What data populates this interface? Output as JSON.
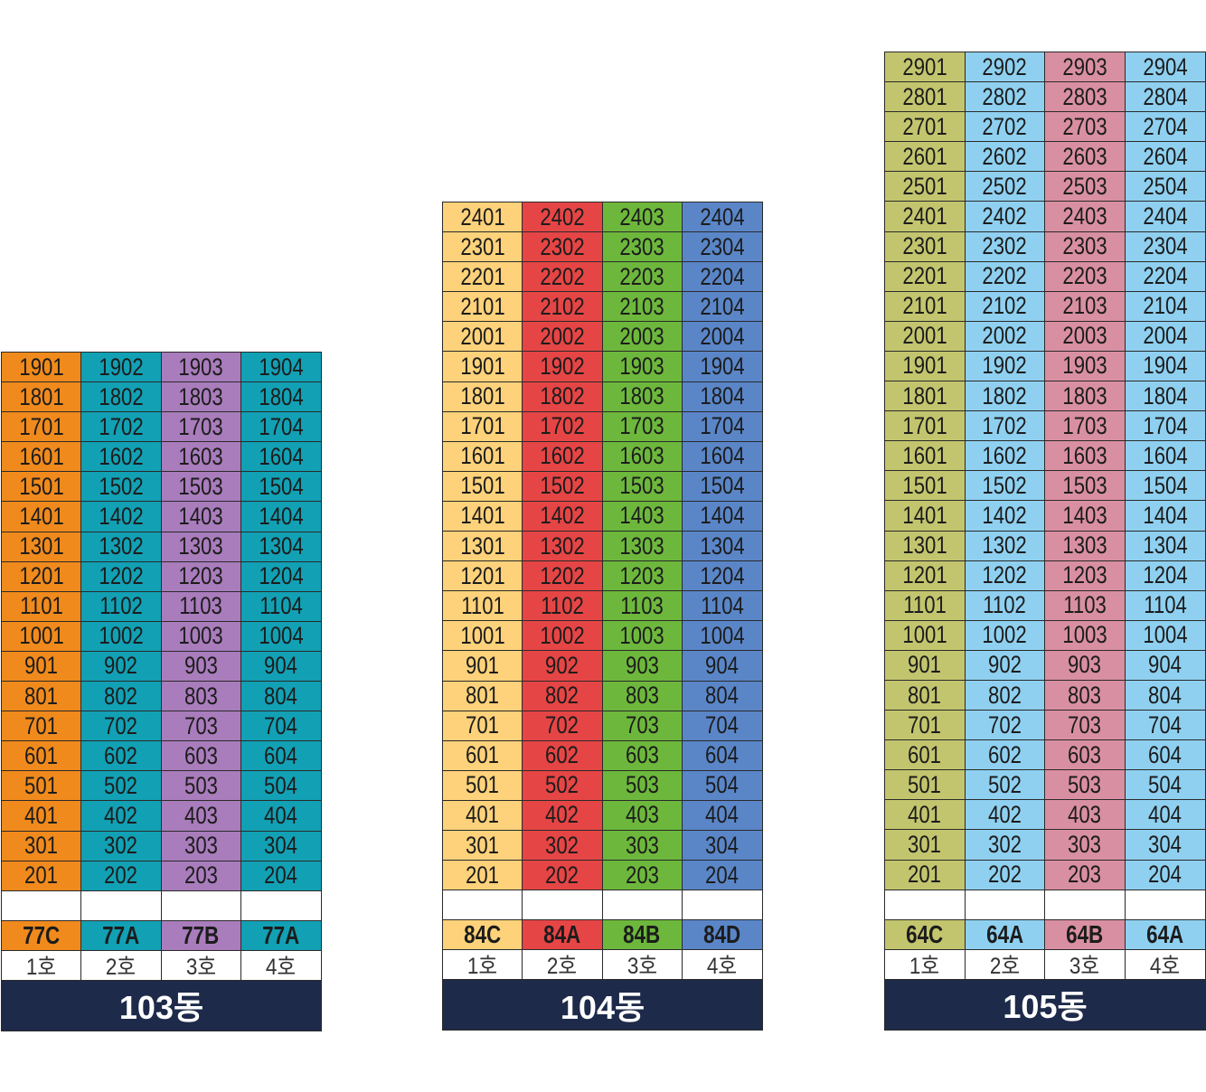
{
  "buildings": [
    {
      "name": "103동",
      "floors": [
        "19",
        "18",
        "17",
        "16",
        "15",
        "14",
        "13",
        "12",
        "11",
        "10",
        "9",
        "8",
        "7",
        "6",
        "5",
        "4",
        "3",
        "2"
      ],
      "columns": [
        {
          "line": "1호",
          "type": "77C",
          "color": "#f08a1c"
        },
        {
          "line": "2호",
          "type": "77A",
          "color": "#12a0b4"
        },
        {
          "line": "3호",
          "type": "77B",
          "color": "#a97cbc"
        },
        {
          "line": "4호",
          "type": "77A",
          "color": "#12a0b4"
        }
      ]
    },
    {
      "name": "104동",
      "floors": [
        "24",
        "23",
        "22",
        "21",
        "20",
        "19",
        "18",
        "17",
        "16",
        "15",
        "14",
        "13",
        "12",
        "11",
        "10",
        "9",
        "8",
        "7",
        "6",
        "5",
        "4",
        "3",
        "2"
      ],
      "columns": [
        {
          "line": "1호",
          "type": "84C",
          "color": "#fdd27a"
        },
        {
          "line": "2호",
          "type": "84A",
          "color": "#e64545"
        },
        {
          "line": "3호",
          "type": "84B",
          "color": "#6db83c"
        },
        {
          "line": "4호",
          "type": "84D",
          "color": "#5a86c8"
        }
      ]
    },
    {
      "name": "105동",
      "floors": [
        "29",
        "28",
        "27",
        "26",
        "25",
        "24",
        "23",
        "22",
        "21",
        "20",
        "19",
        "18",
        "17",
        "16",
        "15",
        "14",
        "13",
        "12",
        "11",
        "10",
        "9",
        "8",
        "7",
        "6",
        "5",
        "4",
        "3",
        "2"
      ],
      "columns": [
        {
          "line": "1호",
          "type": "64C",
          "color": "#c3c56e"
        },
        {
          "line": "2호",
          "type": "64A",
          "color": "#8fd0f0"
        },
        {
          "line": "3호",
          "type": "64B",
          "color": "#d98fa2"
        },
        {
          "line": "4호",
          "type": "64A",
          "color": "#8fd0f0"
        }
      ]
    }
  ]
}
